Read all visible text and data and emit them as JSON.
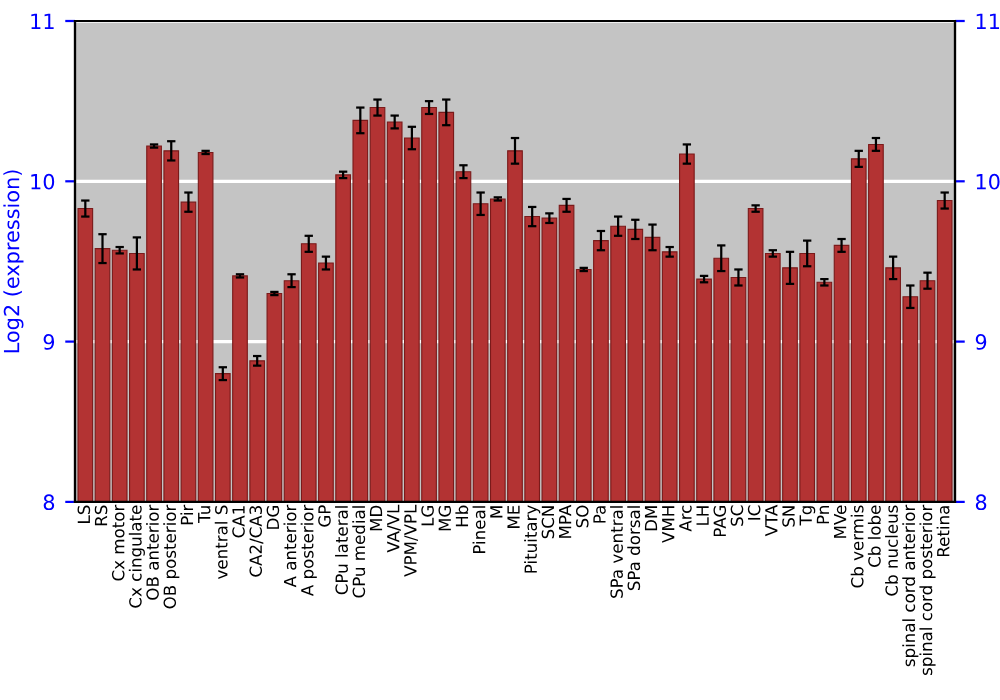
{
  "chart_data": {
    "type": "bar",
    "ylabel": "Log2 (expression)",
    "categories": [
      "LS",
      "RS",
      "Cx motor",
      "Cx cingulate",
      "OB anterior",
      "OB posterior",
      "Pir",
      "Tu",
      "ventral S",
      "CA1",
      "CA2/CA3",
      "DG",
      "A anterior",
      "A posterior",
      "GP",
      "CPu lateral",
      "CPu medial",
      "MD",
      "VA/VL",
      "VPM/VPL",
      "LG",
      "MG",
      "Hb",
      "Pineal",
      "M",
      "ME",
      "Pituitary",
      "SCN",
      "MPA",
      "SO",
      "Pa",
      "SPa ventral",
      "SPa dorsal",
      "DM",
      "VMH",
      "Arc",
      "LH",
      "PAG",
      "SC",
      "IC",
      "VTA",
      "SN",
      "Tg",
      "Pn",
      "MVe",
      "Cb vermis",
      "Cb lobe",
      "Cb nucleus",
      "spinal cord anterior",
      "spinal cord posterior",
      "Retina"
    ],
    "values": [
      9.83,
      9.58,
      9.57,
      9.55,
      10.22,
      10.19,
      9.87,
      10.18,
      8.8,
      9.41,
      8.88,
      9.3,
      9.38,
      9.61,
      9.49,
      10.04,
      10.38,
      10.46,
      10.37,
      10.27,
      10.46,
      10.43,
      10.06,
      9.86,
      9.89,
      10.19,
      9.78,
      9.77,
      9.85,
      9.45,
      9.63,
      9.72,
      9.7,
      9.65,
      9.56,
      10.17,
      9.39,
      9.52,
      9.4,
      9.83,
      9.55,
      9.46,
      9.55,
      9.37,
      9.6,
      10.14,
      10.23,
      9.46,
      9.28,
      9.38,
      9.88
    ],
    "errors": [
      0.05,
      0.09,
      0.02,
      0.1,
      0.01,
      0.06,
      0.06,
      0.01,
      0.04,
      0.01,
      0.03,
      0.01,
      0.04,
      0.05,
      0.04,
      0.02,
      0.08,
      0.05,
      0.04,
      0.07,
      0.04,
      0.08,
      0.04,
      0.07,
      0.01,
      0.08,
      0.06,
      0.03,
      0.04,
      0.01,
      0.06,
      0.06,
      0.06,
      0.08,
      0.03,
      0.06,
      0.02,
      0.08,
      0.05,
      0.02,
      0.02,
      0.1,
      0.08,
      0.02,
      0.04,
      0.05,
      0.04,
      0.07,
      0.07,
      0.05,
      0.05
    ],
    "color": "#b33333",
    "ylim": [
      8,
      11
    ],
    "yticks": [
      8,
      9,
      10,
      11
    ],
    "y2lim": [
      8,
      11
    ],
    "y2ticks": [
      8,
      9,
      10,
      11
    ],
    "grid": "y",
    "legend": false
  }
}
